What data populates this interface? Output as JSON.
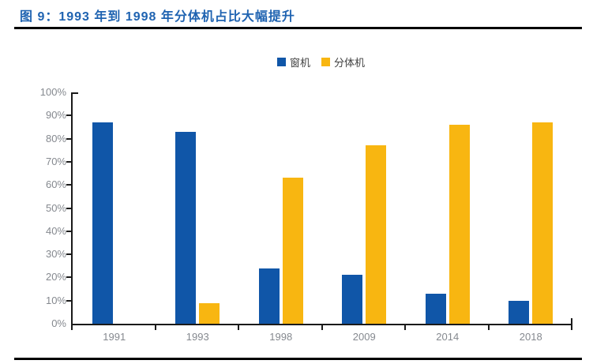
{
  "figure": {
    "title": "图 9：1993 年到 1998 年分体机占比大幅提升"
  },
  "chart_data": {
    "type": "bar",
    "title": "图 9：1993 年到 1998 年分体机占比大幅提升",
    "categories": [
      "1991",
      "1993",
      "1998",
      "2009",
      "2014",
      "2018"
    ],
    "series": [
      {
        "key": "window-ac",
        "name": "窗机",
        "color": "#1056A8",
        "values": [
          87,
          83,
          24,
          21,
          13,
          10
        ]
      },
      {
        "key": "split-ac",
        "name": "分体机",
        "color": "#F8B611",
        "values": [
          0,
          9,
          63,
          77,
          86,
          87
        ]
      }
    ],
    "xlabel": "",
    "ylabel": "",
    "unit": "%",
    "ylim": [
      0,
      100
    ],
    "y_tick_step": 10,
    "y_tick_labels": [
      "0%",
      "10%",
      "20%",
      "30%",
      "40%",
      "50%",
      "60%",
      "70%",
      "80%",
      "90%",
      "100%"
    ],
    "grid": false,
    "legend_position": "top-center"
  },
  "colors": {
    "title_text": "#1F63B1",
    "rule": "#000000",
    "axis": "#1A1A1A",
    "tick_label": "#85898F",
    "legend_text": "#3F3F3F",
    "background": "#FFFFFF"
  }
}
